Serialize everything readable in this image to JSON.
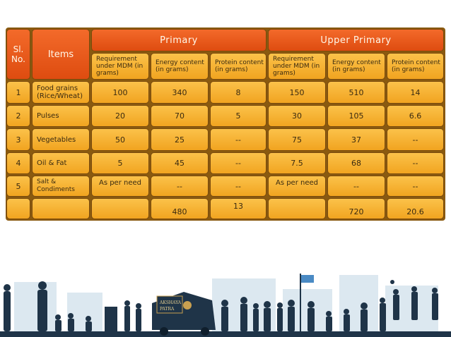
{
  "header": {
    "sl_no": "Sl. No.",
    "items": "Items",
    "primary": "Primary",
    "upper_primary": "Upper Primary",
    "primary_cols": [
      "Requirement under MDM (in grams)",
      "Energy content (in grams)",
      "Protein content (in grams)"
    ],
    "upper_primary_cols": [
      "Requirement under MDM (in grams)",
      "Energy content (in grams)",
      "Protein content (in grams)"
    ]
  },
  "rows": [
    {
      "sl": "1",
      "item": "Food grains (Rice/Wheat)",
      "p_req": "100",
      "p_energy": "340",
      "p_protein": "8",
      "u_req": "150",
      "u_energy": "510",
      "u_protein": "14"
    },
    {
      "sl": "2",
      "item": "Pulses",
      "p_req": "20",
      "p_energy": "70",
      "p_protein": "5",
      "u_req": "30",
      "u_energy": "105",
      "u_protein": "6.6"
    },
    {
      "sl": "3",
      "item": "Vegetables",
      "p_req": "50",
      "p_energy": "25",
      "p_protein": "--",
      "u_req": "75",
      "u_energy": "37",
      "u_protein": "--"
    },
    {
      "sl": "4",
      "item": "Oil & Fat",
      "p_req": "5",
      "p_energy": "45",
      "p_protein": "--",
      "u_req": "7.5",
      "u_energy": "68",
      "u_protein": "--"
    },
    {
      "sl": "5",
      "item": "Salt & Condiments",
      "p_req": "As per need",
      "p_energy": "--",
      "p_protein": "--",
      "u_req": "As per need",
      "u_energy": "--",
      "u_protein": "--"
    }
  ],
  "totals": {
    "p_energy": "480",
    "p_protein": "13",
    "u_energy": "720",
    "u_protein": "20.6"
  },
  "logo": {
    "line1": "AKSHAYA",
    "line2": "PATRA"
  },
  "colors": {
    "header": "#e2531a",
    "cell": "#f5b02f",
    "silhouette": "#1f3448",
    "sky": "#dce8f0"
  }
}
